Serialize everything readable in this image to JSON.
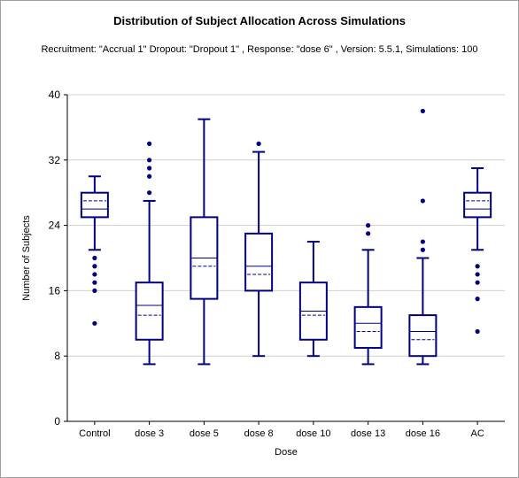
{
  "chart_data": {
    "type": "box",
    "title": "Distribution of Subject Allocation Across Simulations",
    "subtitle": "Recruitment: \"Accrual 1\" Dropout: \"Dropout 1\" , Response: \"dose 6\" , Version: 5.5.1, Simulations: 100",
    "xlabel": "Dose",
    "ylabel": "Number of Subjects",
    "ylim": [
      0,
      40
    ],
    "yticks": [
      0,
      8,
      16,
      24,
      32,
      40
    ],
    "grid": true,
    "colors": {
      "box": "#000080",
      "grid": "#d0d0d0",
      "axis": "#000000"
    },
    "categories": [
      "Control",
      "dose 3",
      "dose 5",
      "dose 8",
      "dose 10",
      "dose 13",
      "dose 16",
      "AC"
    ],
    "boxes": [
      {
        "whisker_low": 21,
        "q1": 25,
        "median": 26,
        "mean": 27,
        "q3": 28,
        "whisker_high": 30,
        "outliers": [
          12,
          16,
          17,
          18,
          19,
          20
        ]
      },
      {
        "whisker_low": 7,
        "q1": 10,
        "median": 14.2,
        "mean": 13,
        "q3": 17,
        "whisker_high": 27,
        "outliers": [
          28,
          30,
          31,
          32,
          34
        ]
      },
      {
        "whisker_low": 7,
        "q1": 15,
        "median": 20,
        "mean": 19,
        "q3": 25,
        "whisker_high": 37,
        "outliers": []
      },
      {
        "whisker_low": 8,
        "q1": 16,
        "median": 19,
        "mean": 18,
        "q3": 23,
        "whisker_high": 33,
        "outliers": [
          34
        ]
      },
      {
        "whisker_low": 8,
        "q1": 10,
        "median": 13.5,
        "mean": 13,
        "q3": 17,
        "whisker_high": 22,
        "outliers": []
      },
      {
        "whisker_low": 7,
        "q1": 9,
        "median": 12,
        "mean": 11,
        "q3": 14,
        "whisker_high": 21,
        "outliers": [
          23,
          24
        ]
      },
      {
        "whisker_low": 7,
        "q1": 8,
        "median": 11,
        "mean": 10,
        "q3": 13,
        "whisker_high": 20,
        "outliers": [
          21,
          22,
          27,
          38
        ]
      },
      {
        "whisker_low": 21,
        "q1": 25,
        "median": 26,
        "mean": 27,
        "q3": 28,
        "whisker_high": 31,
        "outliers": [
          11,
          15,
          17,
          18,
          19
        ]
      }
    ]
  }
}
